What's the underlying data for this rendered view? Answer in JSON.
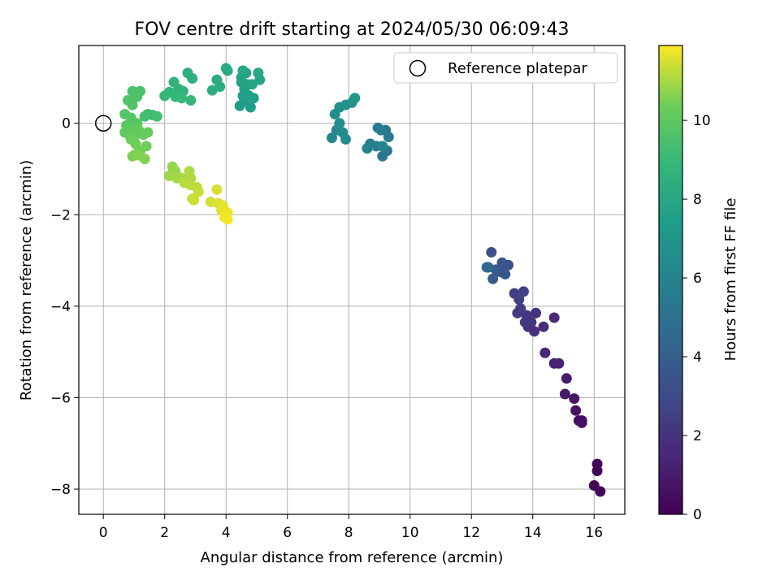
{
  "chart_data": {
    "type": "scatter",
    "title": "FOV centre drift starting at 2024/05/30 06:09:43",
    "xlabel": "Angular distance from reference (arcmin)",
    "ylabel": "Rotation from reference (arcmin)",
    "xlim": [
      -0.8,
      17.0
    ],
    "ylim": [
      -8.55,
      1.7
    ],
    "xticks": [
      0,
      2,
      4,
      6,
      8,
      10,
      12,
      14,
      16
    ],
    "yticks": [
      -8,
      -6,
      -4,
      -2,
      0
    ],
    "grid": true,
    "legend": {
      "placement": "top-right",
      "entries": [
        {
          "label": "Reference platepar",
          "marker": "open-circle"
        }
      ]
    },
    "reference_point": {
      "x": 0,
      "y": 0
    },
    "colorbar": {
      "label": "Hours from first FF file",
      "colormap": "viridis",
      "range": [
        0,
        11.9
      ],
      "ticks": [
        0,
        2,
        4,
        6,
        8,
        10
      ]
    },
    "points": [
      [
        16.1,
        -7.45,
        0.05
      ],
      [
        16.1,
        -7.6,
        0.1
      ],
      [
        16.0,
        -7.92,
        0.15
      ],
      [
        16.2,
        -8.05,
        0.2
      ],
      [
        15.6,
        -6.5,
        0.5
      ],
      [
        15.5,
        -6.5,
        0.55
      ],
      [
        15.6,
        -6.55,
        0.6
      ],
      [
        15.4,
        -6.28,
        0.7
      ],
      [
        15.35,
        -6.02,
        0.8
      ],
      [
        15.05,
        -5.92,
        0.9
      ],
      [
        15.1,
        -5.58,
        1.0
      ],
      [
        14.85,
        -5.25,
        1.2
      ],
      [
        14.7,
        -5.25,
        1.3
      ],
      [
        14.4,
        -5.02,
        1.4
      ],
      [
        14.7,
        -4.25,
        1.6
      ],
      [
        14.35,
        -4.45,
        1.7
      ],
      [
        14.05,
        -4.55,
        1.8
      ],
      [
        13.85,
        -4.45,
        1.9
      ],
      [
        14.1,
        -4.15,
        2.0
      ],
      [
        13.95,
        -4.35,
        2.05
      ],
      [
        13.75,
        -4.35,
        2.1
      ],
      [
        13.8,
        -4.2,
        2.15
      ],
      [
        13.5,
        -4.15,
        2.3
      ],
      [
        13.6,
        -4.05,
        2.4
      ],
      [
        13.4,
        -3.72,
        2.5
      ],
      [
        13.55,
        -3.85,
        2.55
      ],
      [
        13.7,
        -3.68,
        2.6
      ],
      [
        12.65,
        -2.82,
        3.2
      ],
      [
        13.2,
        -3.1,
        3.3
      ],
      [
        13.0,
        -3.05,
        3.4
      ],
      [
        12.95,
        -3.25,
        3.5
      ],
      [
        13.1,
        -3.3,
        3.6
      ],
      [
        12.8,
        -3.2,
        3.7
      ],
      [
        12.7,
        -3.4,
        3.8
      ],
      [
        12.55,
        -3.15,
        4.1
      ],
      [
        12.5,
        -3.15,
        4.6
      ],
      [
        9.1,
        -0.72,
        5.2
      ],
      [
        9.25,
        -0.6,
        5.3
      ],
      [
        9.2,
        -0.15,
        5.4
      ],
      [
        9.3,
        -0.3,
        5.5
      ],
      [
        8.95,
        -0.1,
        5.6
      ],
      [
        9.05,
        -0.15,
        5.7
      ],
      [
        8.9,
        -0.5,
        5.8
      ],
      [
        8.7,
        -0.45,
        5.9
      ],
      [
        8.6,
        -0.55,
        6.0
      ],
      [
        9.1,
        -0.5,
        6.1
      ],
      [
        7.45,
        -0.32,
        6.2
      ],
      [
        7.6,
        -0.15,
        6.3
      ],
      [
        7.8,
        -0.2,
        6.4
      ],
      [
        7.9,
        -0.35,
        6.5
      ],
      [
        7.7,
        0.0,
        6.55
      ],
      [
        7.55,
        0.2,
        6.6
      ],
      [
        7.7,
        0.35,
        6.7
      ],
      [
        7.9,
        0.4,
        6.8
      ],
      [
        8.1,
        0.45,
        6.9
      ],
      [
        8.2,
        0.55,
        7.0
      ],
      [
        4.45,
        0.38,
        7.3
      ],
      [
        4.6,
        0.5,
        7.35
      ],
      [
        4.8,
        0.35,
        7.4
      ],
      [
        4.75,
        0.6,
        7.45
      ],
      [
        4.55,
        0.6,
        7.5
      ],
      [
        4.9,
        0.55,
        7.55
      ],
      [
        4.6,
        0.75,
        7.6
      ],
      [
        4.5,
        0.9,
        7.65
      ],
      [
        4.65,
        1.1,
        7.7
      ],
      [
        4.5,
        1.0,
        7.75
      ],
      [
        4.7,
        0.85,
        7.8
      ],
      [
        4.85,
        0.85,
        7.85
      ],
      [
        5.1,
        0.95,
        7.9
      ],
      [
        5.05,
        1.1,
        7.95
      ],
      [
        4.55,
        1.15,
        8.0
      ],
      [
        4.0,
        1.2,
        8.1
      ],
      [
        4.05,
        1.15,
        8.15
      ],
      [
        3.7,
        0.95,
        8.3
      ],
      [
        3.8,
        0.8,
        8.35
      ],
      [
        3.55,
        0.72,
        8.4
      ],
      [
        2.75,
        1.1,
        8.5
      ],
      [
        2.9,
        0.98,
        8.55
      ],
      [
        2.3,
        0.9,
        8.6
      ],
      [
        2.45,
        0.75,
        8.65
      ],
      [
        2.6,
        0.7,
        8.7
      ],
      [
        2.15,
        0.68,
        8.75
      ],
      [
        2.0,
        0.6,
        8.8
      ],
      [
        2.35,
        0.58,
        8.85
      ],
      [
        2.55,
        0.55,
        8.9
      ],
      [
        2.85,
        0.5,
        8.95
      ],
      [
        1.45,
        0.2,
        9.2
      ],
      [
        1.6,
        0.18,
        9.25
      ],
      [
        1.75,
        0.15,
        9.3
      ],
      [
        1.35,
        0.15,
        9.35
      ],
      [
        0.95,
        0.7,
        9.5
      ],
      [
        1.2,
        0.7,
        9.55
      ],
      [
        1.1,
        0.58,
        9.6
      ],
      [
        0.8,
        0.5,
        9.65
      ],
      [
        0.95,
        0.4,
        9.7
      ],
      [
        0.7,
        0.2,
        9.75
      ],
      [
        0.9,
        0.12,
        9.8
      ],
      [
        1.1,
        0.0,
        9.85
      ],
      [
        0.75,
        -0.05,
        9.9
      ],
      [
        0.95,
        -0.1,
        9.95
      ],
      [
        0.7,
        -0.2,
        10.0
      ],
      [
        0.85,
        -0.25,
        10.05
      ],
      [
        1.0,
        -0.3,
        10.1
      ],
      [
        1.15,
        -0.15,
        10.15
      ],
      [
        1.3,
        -0.25,
        10.2
      ],
      [
        1.45,
        -0.2,
        10.25
      ],
      [
        0.9,
        -0.35,
        10.3
      ],
      [
        1.05,
        -0.45,
        10.35
      ],
      [
        1.4,
        -0.5,
        10.4
      ],
      [
        1.2,
        -0.6,
        10.45
      ],
      [
        1.05,
        -0.68,
        10.5
      ],
      [
        0.95,
        -0.72,
        10.55
      ],
      [
        1.15,
        -0.7,
        10.6
      ],
      [
        1.35,
        -0.78,
        10.65
      ],
      [
        2.25,
        -0.95,
        10.8
      ],
      [
        2.35,
        -1.05,
        10.85
      ],
      [
        2.15,
        -1.15,
        10.9
      ],
      [
        2.4,
        -1.2,
        10.95
      ],
      [
        2.55,
        -1.2,
        11.0
      ],
      [
        2.8,
        -1.05,
        11.05
      ],
      [
        2.85,
        -1.2,
        11.1
      ],
      [
        2.65,
        -1.3,
        11.15
      ],
      [
        2.85,
        -1.35,
        11.2
      ],
      [
        3.05,
        -1.4,
        11.25
      ],
      [
        3.1,
        -1.5,
        11.3
      ],
      [
        2.9,
        -1.65,
        11.35
      ],
      [
        2.95,
        -1.68,
        11.4
      ],
      [
        3.5,
        -1.72,
        11.45
      ],
      [
        3.7,
        -1.45,
        11.5
      ],
      [
        3.75,
        -1.75,
        11.55
      ],
      [
        3.9,
        -1.8,
        11.6
      ],
      [
        3.85,
        -1.9,
        11.65
      ],
      [
        4.05,
        -1.95,
        11.7
      ],
      [
        3.95,
        -2.05,
        11.75
      ],
      [
        4.05,
        -2.1,
        11.8
      ]
    ]
  }
}
